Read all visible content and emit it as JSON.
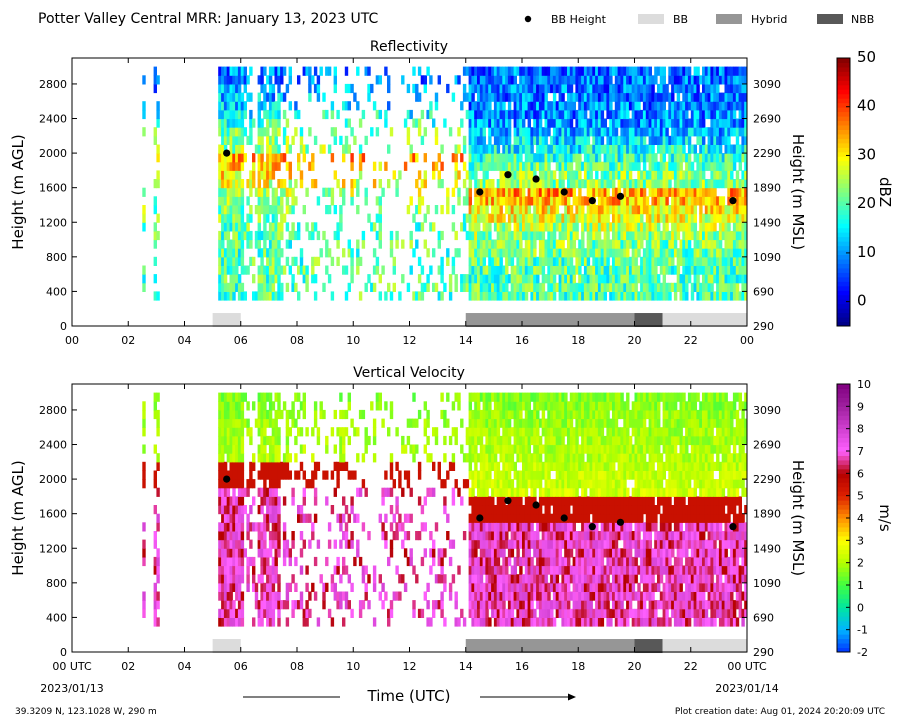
{
  "figure": {
    "title": "Potter Valley Central MRR:  January 13, 2023 UTC",
    "xlabel": "Time (UTC)",
    "start_date": "2023/01/13",
    "end_date": "2023/01/14",
    "location": "39.3209 N, 123.1028 W, 290 m",
    "creation_date": "Plot creation date: Aug 01, 2024 20:20:09 UTC",
    "legend": [
      {
        "label": "BB Height",
        "kind": "marker",
        "color": "#000000"
      },
      {
        "label": "BB",
        "kind": "patch",
        "color": "#dcdcdc"
      },
      {
        "label": "Hybrid",
        "kind": "patch",
        "color": "#969696"
      },
      {
        "label": "NBB",
        "kind": "patch",
        "color": "#585858"
      }
    ]
  },
  "chart_data": [
    {
      "type": "heatmap",
      "title": "Reflectivity",
      "ylabel": "Height (m AGL)",
      "y2label": "Height (m MSL)",
      "colorbar_label": "dBZ",
      "colorbar_range": [
        -5,
        50
      ],
      "colorbar_ticks": [
        0,
        10,
        20,
        30,
        40,
        50
      ],
      "colorbar_colors": [
        "#00007f",
        "#0000ff",
        "#0080ff",
        "#00ffff",
        "#7fff7f",
        "#ffff00",
        "#ff8000",
        "#ff0000",
        "#7f0000"
      ],
      "xlim": [
        0,
        24
      ],
      "ylim": [
        0,
        3100
      ],
      "xticks": [
        "00",
        "02",
        "04",
        "06",
        "08",
        "10",
        "12",
        "14",
        "16",
        "18",
        "20",
        "22",
        "00"
      ],
      "yticks": [
        0,
        400,
        800,
        1200,
        1600,
        2000,
        2400,
        2800
      ],
      "y2ticks": [
        290,
        690,
        1090,
        1490,
        1890,
        2290,
        2690,
        3090
      ],
      "bb_height": {
        "x": [
          5.5,
          14.5,
          15.5,
          16.5,
          17.5,
          18.5,
          19.5,
          23.5
        ],
        "y": [
          2000,
          1550,
          1750,
          1700,
          1550,
          1450,
          1500,
          1450
        ]
      },
      "bb_type_segments": [
        {
          "start": 5.0,
          "end": 6.0,
          "type": "BB"
        },
        {
          "start": 14.0,
          "end": 20.0,
          "type": "Hybrid"
        },
        {
          "start": 20.0,
          "end": 21.0,
          "type": "NBB"
        },
        {
          "start": 21.0,
          "end": 24.0,
          "type": "BB"
        }
      ]
    },
    {
      "type": "heatmap",
      "title": "Vertical Velocity",
      "ylabel": "Height (m AGL)",
      "y2label": "Height (m MSL)",
      "colorbar_label": "m/s",
      "colorbar_range": [
        -2,
        10
      ],
      "colorbar_ticks": [
        -2,
        -1,
        0,
        1,
        2,
        3,
        4,
        5,
        6,
        7,
        8,
        9,
        10
      ],
      "colorbar_colors": [
        "#0030ff",
        "#00b4ff",
        "#00e6a0",
        "#40ff40",
        "#b4ff00",
        "#ffff00",
        "#ff9000",
        "#dd2000",
        "#b40000",
        "#ff60ff",
        "#d040d0",
        "#a020a0",
        "#800080"
      ],
      "xlim": [
        0,
        24
      ],
      "ylim": [
        0,
        3100
      ],
      "xticks": [
        "00 UTC",
        "02",
        "04",
        "06",
        "08",
        "10",
        "12",
        "14",
        "16",
        "18",
        "20",
        "22",
        "00 UTC"
      ],
      "yticks": [
        0,
        400,
        800,
        1200,
        1600,
        2000,
        2400,
        2800
      ],
      "y2ticks": [
        290,
        690,
        1090,
        1490,
        1890,
        2290,
        2690,
        3090
      ],
      "bb_height": {
        "x": [
          5.5,
          14.5,
          15.5,
          16.5,
          17.5,
          18.5,
          19.5,
          23.5
        ],
        "y": [
          2000,
          1550,
          1750,
          1700,
          1550,
          1450,
          1500,
          1450
        ]
      },
      "bb_type_segments": [
        {
          "start": 5.0,
          "end": 6.0,
          "type": "BB"
        },
        {
          "start": 14.0,
          "end": 20.0,
          "type": "Hybrid"
        },
        {
          "start": 20.0,
          "end": 21.0,
          "type": "NBB"
        },
        {
          "start": 21.0,
          "end": 24.0,
          "type": "BB"
        }
      ]
    }
  ]
}
